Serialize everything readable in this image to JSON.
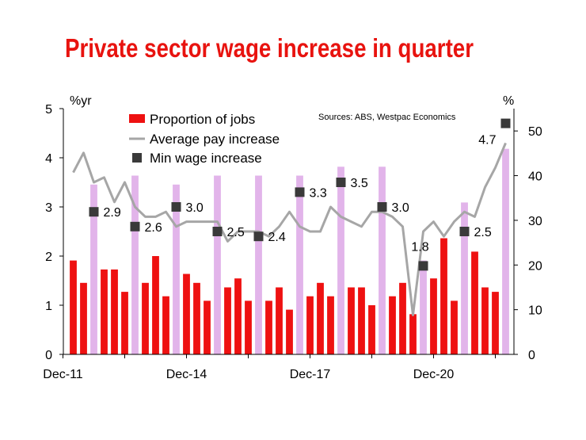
{
  "colors": {
    "title": "#e8130f",
    "jobs_red": "#ee1111",
    "jobs_lilac": "#e2b4ea",
    "pay_line": "#a6a6a6",
    "min_wage_marker": "#3a3a3a",
    "axis": "#000000",
    "background": "#ffffff"
  },
  "chart_data": {
    "type": "bar",
    "title": "Private sector wage increase in quarter",
    "source": "Sources: ABS, Westpac Economics",
    "left_axis": {
      "unit_label": "%yr",
      "ylim": [
        0,
        5
      ],
      "ticks": [
        "0",
        "1",
        "2",
        "3",
        "4",
        "5"
      ]
    },
    "right_axis": {
      "unit_label": "%",
      "ylim": [
        0,
        55
      ],
      "ticks": [
        "0",
        "10",
        "20",
        "30",
        "40",
        "50"
      ]
    },
    "x_tick_labels": [
      "Dec-11",
      "Dec-14",
      "Dec-17",
      "Dec-20"
    ],
    "grid": false,
    "legend": {
      "placement": "top-left",
      "entries": [
        "Proportion of jobs",
        "Average pay increase",
        "Min wage increase"
      ]
    },
    "series": [
      {
        "name": "Proportion of jobs",
        "axis": "right",
        "kind": "bar",
        "values": [
          21,
          16,
          38,
          19,
          19,
          14,
          40,
          16,
          22,
          13,
          38,
          18,
          16,
          12,
          40,
          15,
          17,
          12,
          40,
          12,
          15,
          10,
          40,
          13,
          16,
          13,
          42,
          15,
          15,
          11,
          42,
          13,
          16,
          9,
          21,
          17,
          26,
          12,
          34,
          23,
          15,
          14,
          46
        ],
        "highlight_indices": [
          2,
          6,
          10,
          14,
          18,
          22,
          26,
          30,
          34,
          38,
          42
        ]
      },
      {
        "name": "Average pay increase",
        "axis": "left",
        "kind": "line",
        "values": [
          3.7,
          4.1,
          3.5,
          3.6,
          3.1,
          3.5,
          3.0,
          2.8,
          2.8,
          2.9,
          2.6,
          2.7,
          2.7,
          2.7,
          2.7,
          2.3,
          2.5,
          2.5,
          2.5,
          2.4,
          2.6,
          2.9,
          2.6,
          2.5,
          2.5,
          3.0,
          2.8,
          2.7,
          2.6,
          2.9,
          2.9,
          2.8,
          2.6,
          0.8,
          2.5,
          2.7,
          2.4,
          2.7,
          2.9,
          2.8,
          3.4,
          3.8,
          4.3
        ]
      },
      {
        "name": "Min wage increase",
        "axis": "left",
        "kind": "marker",
        "points": [
          {
            "index": 2,
            "value": 2.9,
            "label": "2.9"
          },
          {
            "index": 6,
            "value": 2.6,
            "label": "2.6"
          },
          {
            "index": 10,
            "value": 3.0,
            "label": "3.0"
          },
          {
            "index": 14,
            "value": 2.5,
            "label": "2.5"
          },
          {
            "index": 18,
            "value": 2.4,
            "label": "2.4"
          },
          {
            "index": 22,
            "value": 3.3,
            "label": "3.3"
          },
          {
            "index": 26,
            "value": 3.5,
            "label": "3.5"
          },
          {
            "index": 30,
            "value": 3.0,
            "label": "3.0"
          },
          {
            "index": 34,
            "value": 1.8,
            "label": "1.8"
          },
          {
            "index": 38,
            "value": 2.5,
            "label": "2.5"
          },
          {
            "index": 42,
            "value": 4.7,
            "label": "4.7"
          }
        ]
      }
    ]
  }
}
